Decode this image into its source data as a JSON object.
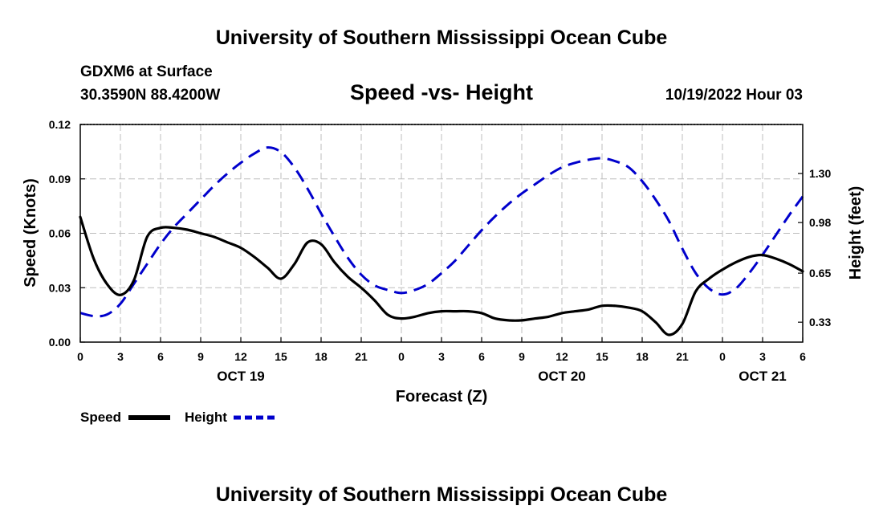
{
  "chart_data": {
    "type": "line",
    "title": "University of Southern Mississippi Ocean Cube",
    "subtitle": "Speed -vs- Height",
    "station": "GDXM6 at Surface",
    "location": "30.3590N  88.4200W",
    "datetime": "10/19/2022 Hour 03",
    "footer_title": "University of Southern Mississippi Ocean Cube",
    "xlabel": "Forecast (Z)",
    "ylabel_left": "Speed (Knots)",
    "ylabel_right": "Height (feet)",
    "x_range": [
      0,
      54
    ],
    "x_tick_values": [
      0,
      3,
      6,
      9,
      12,
      15,
      18,
      21,
      24,
      27,
      30,
      33,
      36,
      39,
      42,
      45,
      48,
      51,
      54
    ],
    "x_tick_labels": [
      "0",
      "3",
      "6",
      "9",
      "12",
      "15",
      "18",
      "21",
      "0",
      "3",
      "6",
      "9",
      "12",
      "15",
      "18",
      "21",
      "0",
      "3",
      "6"
    ],
    "date_labels": [
      {
        "x": 12,
        "label": "OCT 19"
      },
      {
        "x": 36,
        "label": "OCT 20"
      },
      {
        "x": 51,
        "label": "OCT 21"
      }
    ],
    "ylim_left": [
      0,
      0.12
    ],
    "yticks_left": [
      "0.00",
      "0.03",
      "0.06",
      "0.09",
      "0.12"
    ],
    "yticks_left_values": [
      0,
      0.03,
      0.06,
      0.09,
      0.12
    ],
    "ylim_right": [
      0.2,
      1.62
    ],
    "yticks_right": [
      "0.33",
      "0.65",
      "0.98",
      "1.30"
    ],
    "yticks_right_values": [
      0.33,
      0.65,
      0.98,
      1.3
    ],
    "grid": true,
    "legend": "bottom-left",
    "series": [
      {
        "name": "Speed",
        "axis": "left",
        "color": "#000000",
        "style": "solid",
        "x": [
          0,
          1,
          2,
          3,
          4,
          5,
          6,
          7,
          8,
          9,
          10,
          11,
          12,
          13,
          14,
          15,
          16,
          17,
          18,
          19,
          20,
          21,
          22,
          23,
          24,
          25,
          26,
          27,
          28,
          29,
          30,
          31,
          32,
          33,
          34,
          35,
          36,
          37,
          38,
          39,
          40,
          41,
          42,
          43,
          44,
          45,
          46,
          47,
          48,
          49,
          50,
          51,
          52,
          53,
          54
        ],
        "values": [
          0.069,
          0.046,
          0.032,
          0.026,
          0.034,
          0.058,
          0.063,
          0.063,
          0.062,
          0.06,
          0.058,
          0.055,
          0.052,
          0.047,
          0.041,
          0.035,
          0.043,
          0.055,
          0.054,
          0.044,
          0.036,
          0.03,
          0.023,
          0.015,
          0.013,
          0.014,
          0.016,
          0.017,
          0.017,
          0.017,
          0.016,
          0.013,
          0.012,
          0.012,
          0.013,
          0.014,
          0.016,
          0.017,
          0.018,
          0.02,
          0.02,
          0.019,
          0.017,
          0.011,
          0.004,
          0.01,
          0.028,
          0.035,
          0.04,
          0.044,
          0.047,
          0.048,
          0.046,
          0.043,
          0.039
        ]
      },
      {
        "name": "Height",
        "axis": "right",
        "color": "#0000cc",
        "style": "dashed",
        "x": [
          0,
          1,
          2,
          3,
          4,
          5,
          6,
          7,
          8,
          9,
          10,
          11,
          12,
          13,
          14,
          15,
          16,
          17,
          18,
          19,
          20,
          21,
          22,
          23,
          24,
          25,
          26,
          27,
          28,
          29,
          30,
          31,
          32,
          33,
          34,
          35,
          36,
          37,
          38,
          39,
          40,
          41,
          42,
          43,
          44,
          45,
          46,
          47,
          48,
          49,
          50,
          51,
          52,
          53,
          54
        ],
        "values": [
          0.39,
          0.37,
          0.38,
          0.45,
          0.58,
          0.71,
          0.84,
          0.95,
          1.04,
          1.13,
          1.22,
          1.3,
          1.37,
          1.43,
          1.47,
          1.44,
          1.34,
          1.2,
          1.04,
          0.89,
          0.75,
          0.64,
          0.57,
          0.54,
          0.52,
          0.54,
          0.58,
          0.65,
          0.73,
          0.83,
          0.93,
          1.02,
          1.1,
          1.17,
          1.23,
          1.29,
          1.34,
          1.37,
          1.39,
          1.4,
          1.38,
          1.34,
          1.25,
          1.13,
          0.99,
          0.81,
          0.65,
          0.55,
          0.51,
          0.55,
          0.65,
          0.77,
          0.9,
          1.03,
          1.15
        ]
      }
    ]
  }
}
